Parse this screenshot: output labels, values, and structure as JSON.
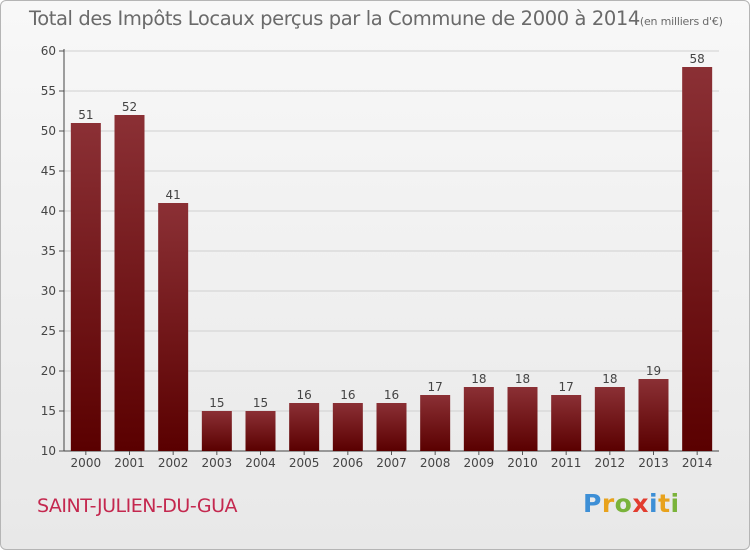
{
  "chart_data": {
    "type": "bar",
    "title": "Total des Impôts Locaux perçus par la Commune de 2000 à 2014",
    "unit": "(en milliers d'€)",
    "categories": [
      "2000",
      "2001",
      "2002",
      "2003",
      "2004",
      "2005",
      "2006",
      "2007",
      "2008",
      "2009",
      "2010",
      "2011",
      "2012",
      "2013",
      "2014"
    ],
    "values": [
      51,
      52,
      41,
      15,
      15,
      16,
      16,
      16,
      17,
      18,
      18,
      17,
      18,
      19,
      58
    ],
    "ylim": [
      10,
      60
    ],
    "yticks": [
      10,
      15,
      20,
      25,
      30,
      35,
      40,
      45,
      50,
      55,
      60
    ],
    "xlabel": "",
    "ylabel": "",
    "grid": true,
    "colors": {
      "bar_top": "#8b3035",
      "bar_bottom": "#5a0000",
      "grid": "#d0d0d0",
      "axis_text": "#444444"
    }
  },
  "commune": "SAINT-JULIEN-DU-GUA",
  "logo": {
    "letters": [
      "P",
      "r",
      "o",
      "x",
      "i",
      "t",
      "i"
    ],
    "colors": [
      "#3d8fd6",
      "#e8a21c",
      "#7ab33a",
      "#e23c2f",
      "#3d8fd6",
      "#e8a21c",
      "#7ab33a"
    ]
  }
}
